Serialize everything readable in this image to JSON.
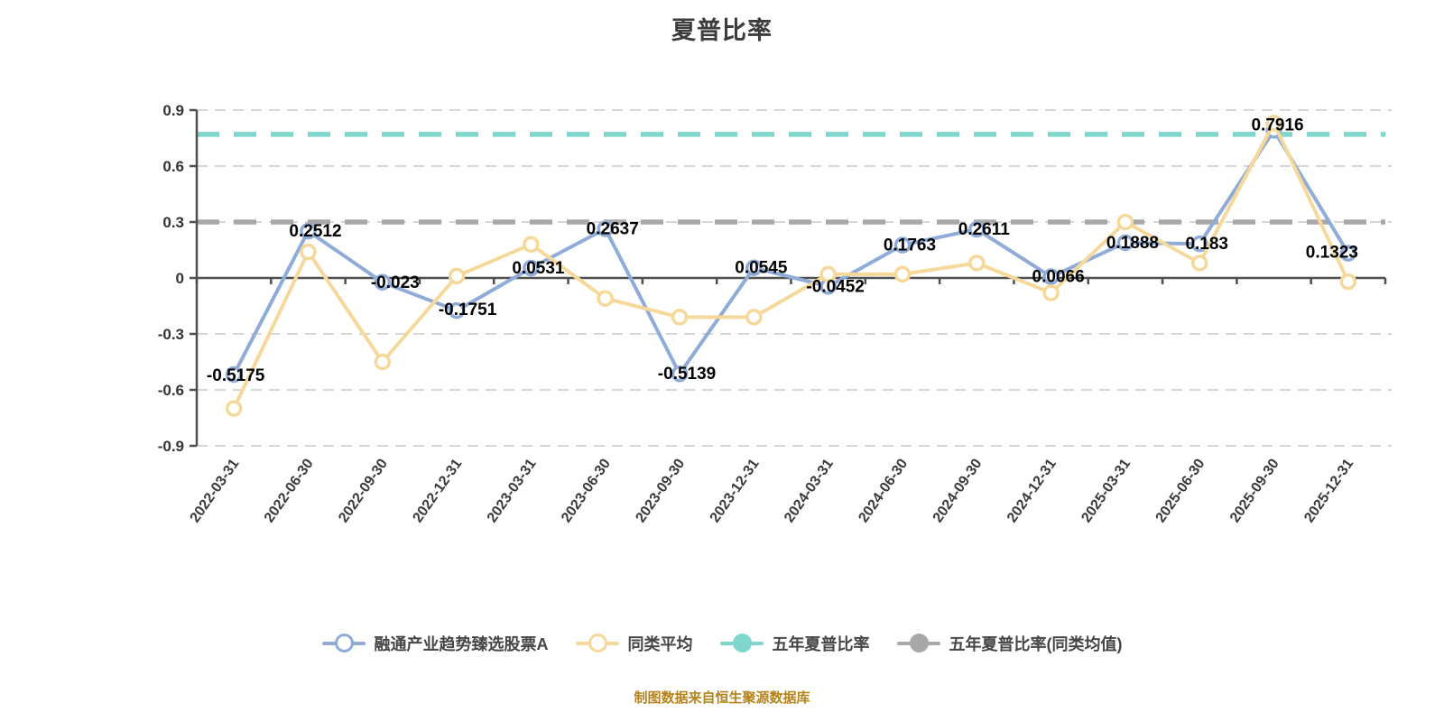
{
  "header": {
    "title": "夏普比率"
  },
  "chart_data": {
    "type": "line",
    "title": "夏普比率",
    "categories": [
      "2022-03-31",
      "2022-06-30",
      "2022-09-30",
      "2022-12-31",
      "2023-03-31",
      "2023-06-30",
      "2023-09-30",
      "2023-12-31",
      "2024-03-31",
      "2024-06-30",
      "2024-09-30",
      "2024-12-31",
      "2025-03-31",
      "2025-06-30",
      "2025-09-30",
      "2025-12-31"
    ],
    "ylim": [
      -0.9,
      0.9
    ],
    "yticks": [
      0.9,
      0.6,
      0.3,
      0,
      -0.3,
      -0.6,
      -0.9
    ],
    "grid": "horizontal-dashed",
    "legend_position": "bottom",
    "series": [
      {
        "name": "融通产业趋势臻选股票A",
        "type": "line",
        "color": "#8fabd7",
        "marker": "hollow-circle",
        "show_labels": true,
        "values": [
          -0.5175,
          0.2512,
          -0.023,
          -0.1751,
          0.0531,
          0.2637,
          -0.5139,
          0.0545,
          -0.0452,
          0.1763,
          0.2611,
          0.0066,
          0.1888,
          0.183,
          0.7916,
          0.1323
        ]
      },
      {
        "name": "同类平均",
        "type": "line",
        "color": "#f6d99a",
        "marker": "hollow-circle",
        "show_labels": false,
        "values": [
          -0.7,
          0.14,
          -0.45,
          0.01,
          0.18,
          -0.11,
          -0.21,
          -0.21,
          0.02,
          0.02,
          0.08,
          -0.08,
          0.3,
          0.08,
          0.83,
          -0.02
        ]
      },
      {
        "name": "五年夏普比率",
        "type": "hline",
        "color": "#7ed6cd",
        "value": 0.77
      },
      {
        "name": "五年夏普比率(同类均值)",
        "type": "hline",
        "color": "#a8a8a8",
        "value": 0.3
      }
    ]
  },
  "footer": {
    "caption": "制图数据来自恒生聚源数据库",
    "caption_color": "#b5831c"
  }
}
